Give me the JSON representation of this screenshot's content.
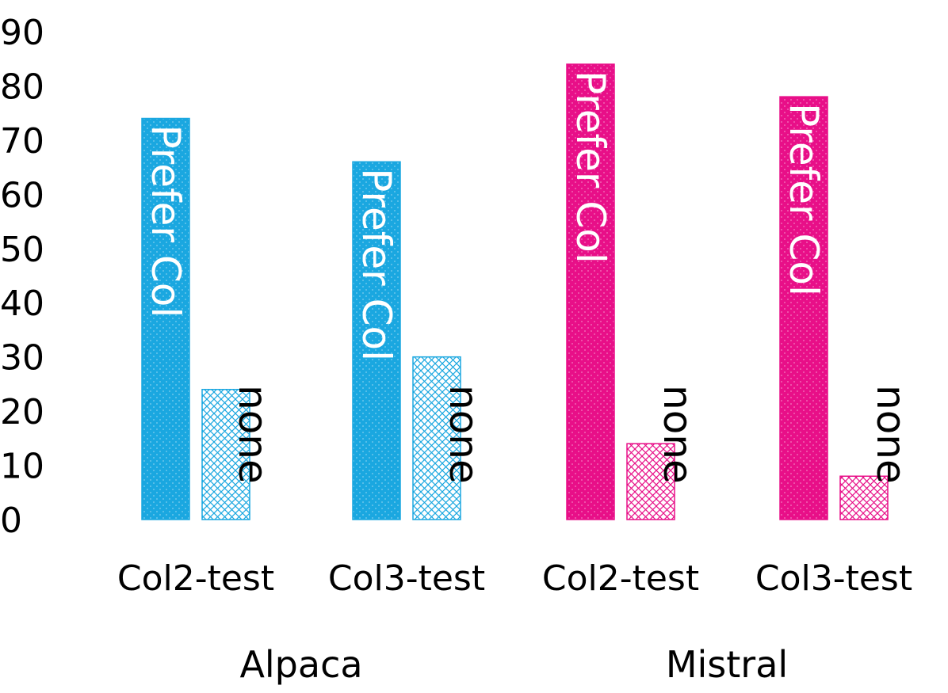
{
  "chart_data": {
    "type": "bar",
    "ylim": [
      0,
      90
    ],
    "y_ticks": [
      "0",
      "10",
      "20",
      "30",
      "40",
      "50",
      "60",
      "70",
      "80",
      "90"
    ],
    "grid": false,
    "groups": [
      {
        "name": "Alpaca",
        "color": "#1aa7e0",
        "categories": [
          {
            "name": "Col2-test",
            "bars": [
              {
                "label": "Prefer Col",
                "value": 74,
                "pattern": "dots"
              },
              {
                "label": "none",
                "value": 24,
                "pattern": "crosshatch"
              }
            ]
          },
          {
            "name": "Col3-test",
            "bars": [
              {
                "label": "Prefer Col",
                "value": 66,
                "pattern": "dots"
              },
              {
                "label": "none",
                "value": 30,
                "pattern": "crosshatch"
              }
            ]
          }
        ]
      },
      {
        "name": "Mistral",
        "color": "#e80f88",
        "categories": [
          {
            "name": "Col2-test",
            "bars": [
              {
                "label": "Prefer Col",
                "value": 84,
                "pattern": "dots"
              },
              {
                "label": "none",
                "value": 14,
                "pattern": "crosshatch"
              }
            ]
          },
          {
            "name": "Col3-test",
            "bars": [
              {
                "label": "Prefer Col",
                "value": 78,
                "pattern": "dots"
              },
              {
                "label": "none",
                "value": 8,
                "pattern": "crosshatch"
              }
            ]
          }
        ]
      }
    ]
  }
}
